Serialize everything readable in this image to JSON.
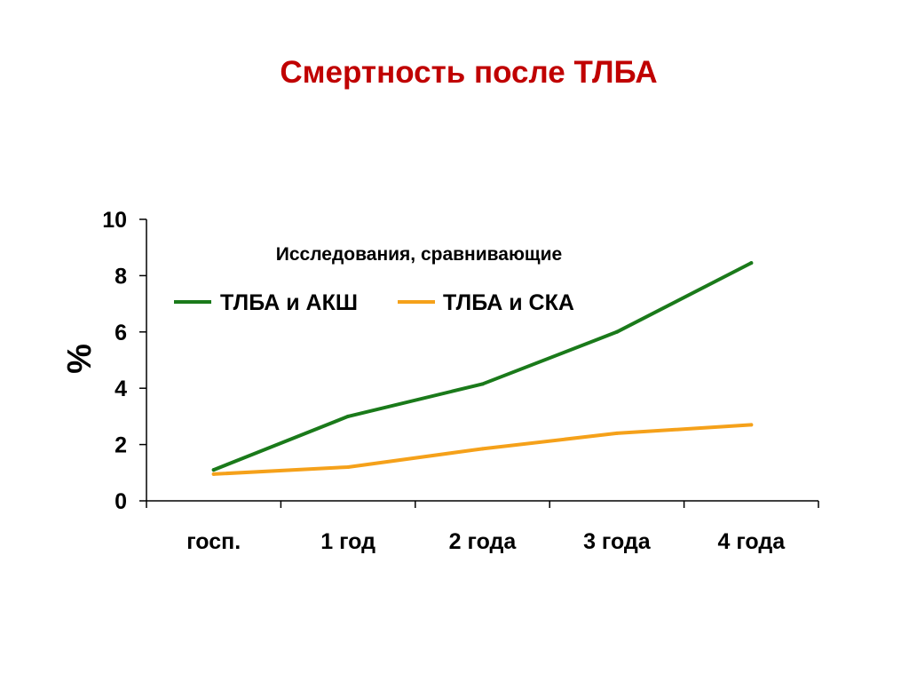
{
  "title": "Смертность после ТЛБА",
  "colors": {
    "title": "#c00000",
    "axis": "#000000"
  },
  "chart_data": {
    "type": "line",
    "ylabel": "%",
    "xlabel": "",
    "categories": [
      "госп.",
      "1 год",
      "2 года",
      "3 года",
      "4 года"
    ],
    "ylim": [
      0,
      10
    ],
    "yticks": [
      0,
      2,
      4,
      6,
      8,
      10
    ],
    "grid": false,
    "legend": {
      "title": "Исследования, сравнивающие",
      "placement": "top-left"
    },
    "series": [
      {
        "name": "ТЛБА и АКШ",
        "color": "#1a7a1a",
        "values": [
          1.1,
          3.0,
          4.15,
          6.0,
          8.45
        ]
      },
      {
        "name": "ТЛБА и СКА",
        "color": "#f5a11a",
        "values": [
          0.95,
          1.2,
          1.85,
          2.4,
          2.7
        ]
      }
    ]
  }
}
